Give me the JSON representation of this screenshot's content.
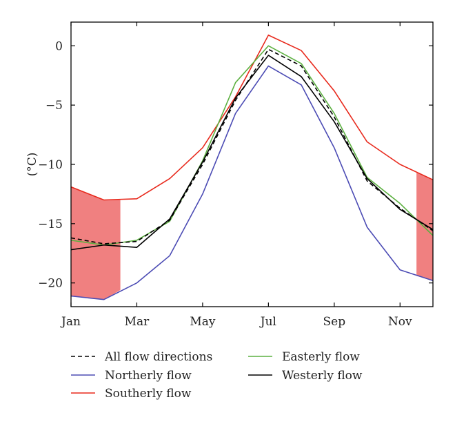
{
  "chart_data": {
    "type": "line",
    "ylabel": "(°C)",
    "xlabel": "",
    "title": "",
    "x_tick_labels": [
      "Jan",
      "Mar",
      "May",
      "Jul",
      "Sep",
      "Nov"
    ],
    "x_tick_positions": [
      1,
      3,
      5,
      7,
      9,
      11
    ],
    "xlim": [
      1,
      12
    ],
    "y_ticks": [
      0,
      -5,
      -10,
      -15,
      -20
    ],
    "y_tick_labels": [
      "0",
      "−5",
      "−10",
      "−15",
      "−20"
    ],
    "ylim": [
      -22,
      2
    ],
    "x": [
      1,
      2,
      3,
      4,
      5,
      6,
      7,
      8,
      9,
      10,
      11,
      12
    ],
    "series": [
      {
        "name": "All flow directions",
        "color": "#000000",
        "dash": true,
        "values": [
          -16.2,
          -16.7,
          -16.5,
          -14.7,
          -10.0,
          -4.6,
          -0.3,
          -1.7,
          -6.0,
          -11.4,
          -13.7,
          -15.6
        ]
      },
      {
        "name": "Northerly flow",
        "color": "#4b4bb4",
        "dash": false,
        "values": [
          -21.1,
          -21.4,
          -20.0,
          -17.7,
          -12.5,
          -5.7,
          -1.7,
          -3.3,
          -8.6,
          -15.3,
          -18.9,
          -19.8
        ]
      },
      {
        "name": "Southerly flow",
        "color": "#e8291c",
        "dash": false,
        "values": [
          -11.9,
          -13.0,
          -12.9,
          -11.2,
          -8.6,
          -4.3,
          0.9,
          -0.4,
          -3.8,
          -8.1,
          -10.0,
          -11.3
        ]
      },
      {
        "name": "Easterly flow",
        "color": "#5cb040",
        "dash": false,
        "values": [
          -16.4,
          -16.8,
          -16.4,
          -14.8,
          -9.7,
          -3.1,
          0.0,
          -1.5,
          -5.7,
          -11.1,
          -13.3,
          -16.0
        ]
      },
      {
        "name": "Westerly flow",
        "color": "#000000",
        "dash": false,
        "values": [
          -17.2,
          -16.8,
          -17.0,
          -14.6,
          -9.8,
          -4.4,
          -0.8,
          -2.6,
          -6.4,
          -11.2,
          -13.8,
          -15.5
        ]
      }
    ],
    "shaded_regions": [
      {
        "color": "#f08080",
        "x": [
          1,
          2,
          2.5
        ],
        "upper": [
          -11.9,
          -13.0,
          -13.0
        ],
        "lower": [
          -21.1,
          -21.4,
          -20.6
        ]
      },
      {
        "color": "#f08080",
        "x": [
          11.5,
          12
        ],
        "upper": [
          -10.7,
          -11.3
        ],
        "lower": [
          -19.4,
          -19.8
        ]
      }
    ],
    "legend": {
      "placement": "below",
      "columns": [
        [
          "All flow directions",
          "Northerly flow",
          "Southerly flow"
        ],
        [
          "Easterly flow",
          "Westerly flow"
        ]
      ]
    },
    "grid": false
  }
}
